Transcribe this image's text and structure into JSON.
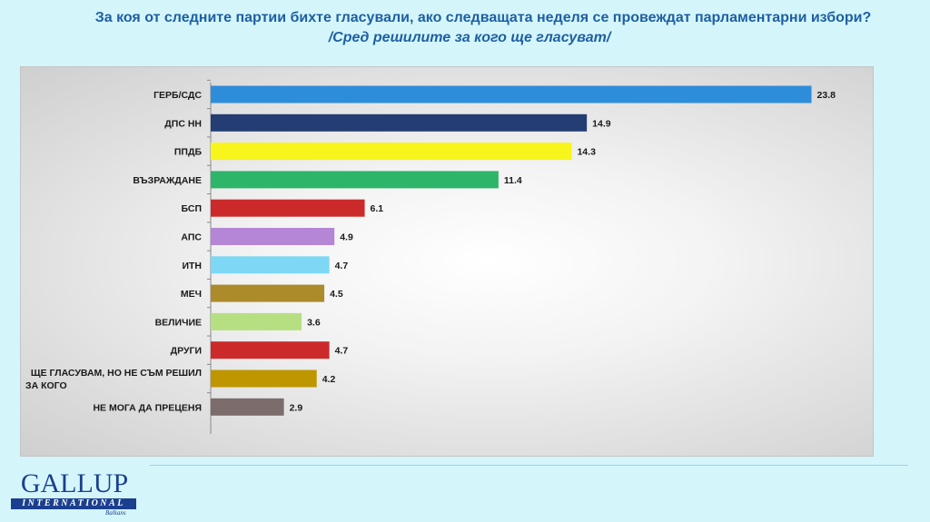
{
  "title": {
    "line1": "За коя от следните партии бихте  гласували,  ако следващата неделя се провеждат парламентарни избори?",
    "line2": "/Сред решилите за кого ще гласуват/"
  },
  "logo": {
    "name": "GALLUP",
    "band": "INTERNATIONAL",
    "region": "Balkans"
  },
  "chart_data": {
    "type": "bar",
    "orientation": "horizontal",
    "categories": [
      "ГЕРБ/СДС",
      "ДПС НН",
      "ППДБ",
      "ВЪЗРАЖДАНЕ",
      "БСП",
      "АПС",
      "ИТН",
      "МЕЧ",
      "ВЕЛИЧИЕ",
      "ДРУГИ",
      "ЩЕ ГЛАСУВАМ, НО НЕ СЪМ РЕШИЛ ЗА КОГО",
      "НЕ МОГА ДА ПРЕЦЕНЯ"
    ],
    "category_lines": [
      [
        "ГЕРБ/СДС"
      ],
      [
        "ДПС НН"
      ],
      [
        "ППДБ"
      ],
      [
        "ВЪЗРАЖДАНЕ"
      ],
      [
        "БСП"
      ],
      [
        "АПС"
      ],
      [
        "ИТН"
      ],
      [
        "МЕЧ"
      ],
      [
        "ВЕЛИЧИЕ"
      ],
      [
        "ДРУГИ"
      ],
      [
        "ЩЕ ГЛАСУВАМ, НО НЕ СЪМ РЕШИЛ",
        "ЗА КОГО"
      ],
      [
        "НЕ МОГА ДА ПРЕЦЕНЯ"
      ]
    ],
    "values": [
      23.8,
      14.9,
      14.3,
      11.4,
      6.1,
      4.9,
      4.7,
      4.5,
      3.6,
      4.7,
      4.2,
      2.9
    ],
    "value_labels": [
      "23.8",
      "14.9",
      "14.3",
      "11.4",
      "6.1",
      "4.9",
      "4.7",
      "4.5",
      "3.6",
      "4.7",
      "4.2",
      "2.9"
    ],
    "colors": [
      "#2e8ddb",
      "#243d73",
      "#f7f51b",
      "#2db56a",
      "#cc2a2a",
      "#b585d6",
      "#7ed8f5",
      "#ab8b2a",
      "#b6df82",
      "#cc2a2a",
      "#be9600",
      "#7c6c6c"
    ],
    "xlim": [
      0,
      24.5
    ]
  }
}
